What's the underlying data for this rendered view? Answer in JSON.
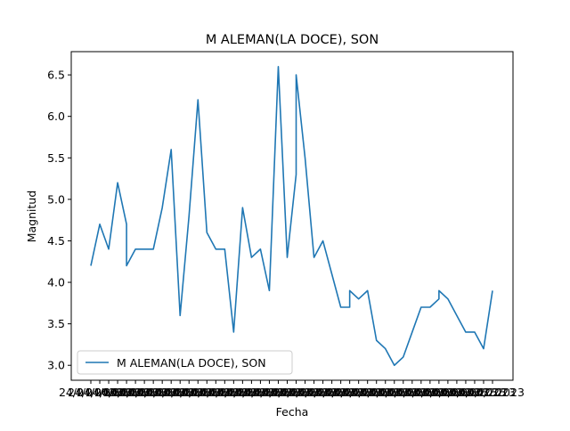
{
  "chart_data": {
    "type": "line",
    "title": "M ALEMAN(LA DOCE), SON",
    "xlabel": "Fecha",
    "ylabel": "Magnitud",
    "ylim": [
      2.82,
      6.78
    ],
    "y_ticks": [
      3.0,
      3.5,
      4.0,
      4.5,
      5.0,
      5.5,
      6.0,
      6.5
    ],
    "y_tick_labels": [
      "3.0",
      "3.5",
      "4.0",
      "4.5",
      "5.0",
      "5.5",
      "6.0",
      "6.5"
    ],
    "x_tick_note": "dense overlapping date labels, e.g. 24/04/2023",
    "x_first_label": "24/04/2023",
    "x_last_label": "2023",
    "grid": false,
    "legend_position": "lower-left",
    "colors": {
      "series": "#1f77b4"
    },
    "series": [
      {
        "name": "M ALEMAN(LA DOCE), SON",
        "values": [
          4.2,
          4.7,
          4.4,
          5.2,
          4.7,
          4.2,
          4.4,
          4.4,
          4.4,
          4.9,
          5.6,
          3.6,
          4.8,
          6.2,
          4.6,
          4.4,
          4.4,
          3.4,
          4.9,
          4.3,
          4.4,
          3.9,
          6.6,
          4.3,
          5.3,
          6.5,
          5.5,
          4.3,
          4.5,
          4.1,
          3.7,
          3.7,
          3.9,
          3.8,
          3.9,
          3.3,
          3.2,
          3.0,
          3.1,
          3.4,
          3.7,
          3.7,
          3.8,
          3.9,
          3.8,
          3.6,
          3.4,
          3.4,
          3.2,
          3.9
        ],
        "x_positions": [
          0,
          1,
          2,
          3,
          4,
          4,
          5,
          6,
          7,
          8,
          9,
          10,
          11,
          12,
          13,
          14,
          15,
          16,
          17,
          18,
          19,
          20,
          21,
          22,
          23,
          23,
          24,
          25,
          26,
          27,
          28,
          29,
          29,
          30,
          31,
          32,
          33,
          34,
          35,
          36,
          37,
          38,
          39,
          39,
          40,
          41,
          42,
          43,
          44,
          45
        ]
      }
    ]
  }
}
